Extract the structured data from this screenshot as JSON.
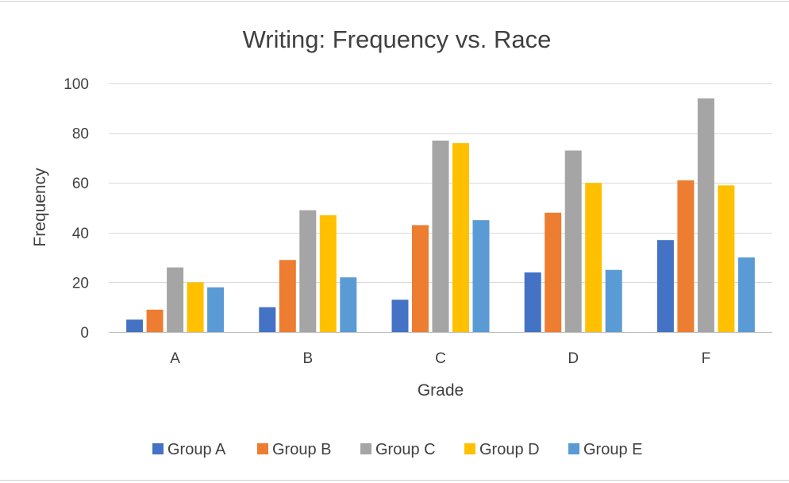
{
  "chart_data": {
    "type": "bar",
    "title": "Writing: Frequency vs. Race",
    "xlabel": "Grade",
    "ylabel": "Frequency",
    "categories": [
      "A",
      "B",
      "C",
      "D",
      "F"
    ],
    "ylim": [
      0,
      100
    ],
    "yticks": [
      0,
      20,
      40,
      60,
      80,
      100
    ],
    "grid": true,
    "legend_position": "bottom",
    "series": [
      {
        "name": "Group A",
        "color": "#4472c4",
        "values": [
          5,
          10,
          13,
          24,
          37
        ]
      },
      {
        "name": "Group B",
        "color": "#ed7d31",
        "values": [
          9,
          29,
          43,
          48,
          61
        ]
      },
      {
        "name": "Group C",
        "color": "#a5a5a5",
        "values": [
          26,
          49,
          77,
          73,
          94
        ]
      },
      {
        "name": "Group D",
        "color": "#ffc000",
        "values": [
          20,
          47,
          76,
          60,
          59
        ]
      },
      {
        "name": "Group E",
        "color": "#5b9bd5",
        "values": [
          18,
          22,
          45,
          25,
          30
        ]
      }
    ]
  }
}
